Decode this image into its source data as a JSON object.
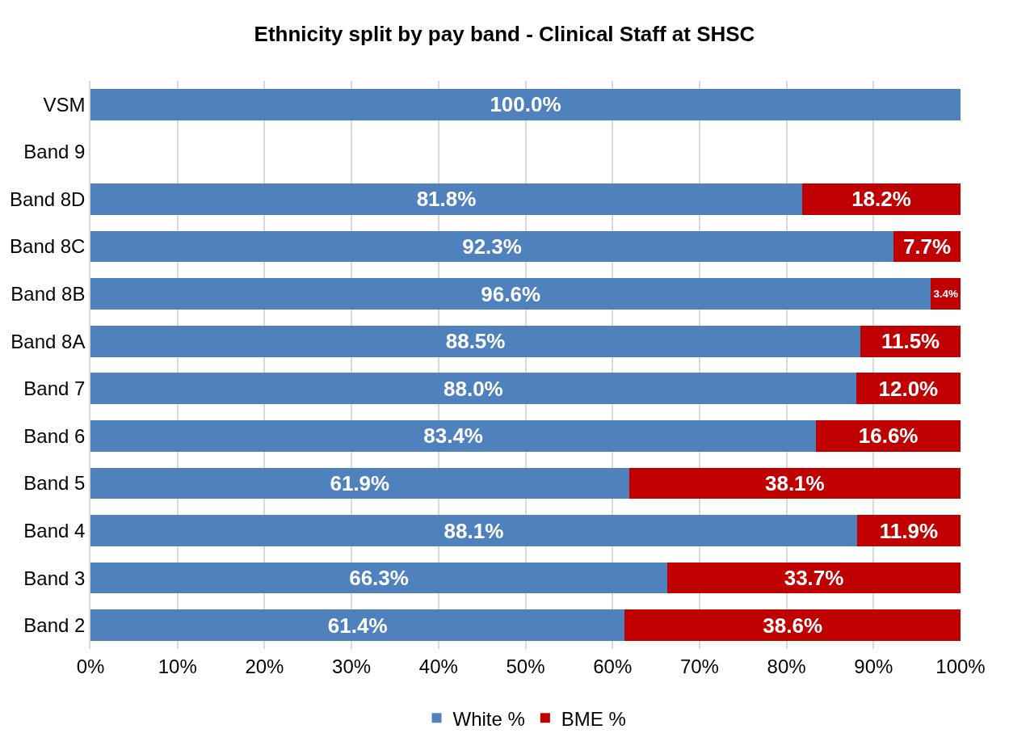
{
  "chart_data": {
    "type": "bar",
    "orientation": "horizontal",
    "stacked": true,
    "title": "Ethnicity split by pay band - Clinical Staff at SHSC",
    "categories": [
      "VSM",
      "Band 9",
      "Band 8D",
      "Band 8C",
      "Band 8B",
      "Band 8A",
      "Band 7",
      "Band 6",
      "Band 5",
      "Band 4",
      "Band 3",
      "Band 2"
    ],
    "series": [
      {
        "name": "White %",
        "color": "#4f81bd",
        "values": [
          100.0,
          null,
          81.8,
          92.3,
          96.6,
          88.5,
          88.0,
          83.4,
          61.9,
          88.1,
          66.3,
          61.4
        ],
        "value_labels": [
          "100.0%",
          null,
          "81.8%",
          "92.3%",
          "96.6%",
          "88.5%",
          "88.0%",
          "83.4%",
          "61.9%",
          "88.1%",
          "66.3%",
          "61.4%"
        ]
      },
      {
        "name": "BME %",
        "color": "#c00000",
        "values": [
          null,
          null,
          18.2,
          7.7,
          3.4,
          11.5,
          12.0,
          16.6,
          38.1,
          11.9,
          33.7,
          38.6
        ],
        "value_labels": [
          null,
          null,
          "18.2%",
          "7.7%",
          "3.4%",
          "11.5%",
          "12.0%",
          "16.6%",
          "38.1%",
          "11.9%",
          "33.7%",
          "38.6%"
        ]
      }
    ],
    "xlim": [
      0,
      100
    ],
    "xticks": [
      {
        "value": 0,
        "label": "0%"
      },
      {
        "value": 10,
        "label": "10%"
      },
      {
        "value": 20,
        "label": "20%"
      },
      {
        "value": 30,
        "label": "30%"
      },
      {
        "value": 40,
        "label": "40%"
      },
      {
        "value": 50,
        "label": "50%"
      },
      {
        "value": 60,
        "label": "60%"
      },
      {
        "value": 70,
        "label": "70%"
      },
      {
        "value": 80,
        "label": "80%"
      },
      {
        "value": 90,
        "label": "90%"
      },
      {
        "value": 100,
        "label": "100%"
      }
    ],
    "grid": "x",
    "legend": "bottom"
  }
}
